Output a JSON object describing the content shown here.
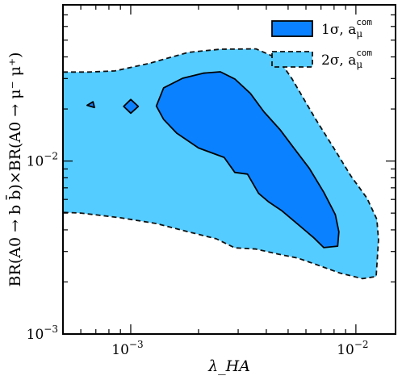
{
  "chart_data": {
    "type": "area",
    "xlabel": "λ_HA",
    "ylabel": "BR(A0 → b b̄)×BR(A0 → μ⁻ μ⁺)",
    "x_scale": "log",
    "y_scale": "log",
    "xlim": [
      0.0005,
      0.015
    ],
    "ylim": [
      0.001,
      0.08
    ],
    "x_ticks": [
      {
        "value": 0.001,
        "label": "10",
        "exp": "−3"
      },
      {
        "value": 0.01,
        "label": "10",
        "exp": "−2"
      }
    ],
    "y_ticks": [
      {
        "value": 0.001,
        "label": "10",
        "exp": "−3"
      },
      {
        "value": 0.01,
        "label": "10",
        "exp": "−2"
      }
    ],
    "grid": false,
    "legend_position": "top-right",
    "series": [
      {
        "name": "2σ, a_μ^com",
        "label_main": "2σ, a",
        "label_sub": "μ",
        "label_sup": "com",
        "fill": "#55ccff",
        "stroke": "#111111",
        "dashed": true,
        "polygons": [
          [
            [
              0.0005,
              0.0327
            ],
            [
              0.00065,
              0.0327
            ],
            [
              0.00085,
              0.0332
            ],
            [
              0.0012,
              0.0366
            ],
            [
              0.0018,
              0.0425
            ],
            [
              0.0025,
              0.0443
            ],
            [
              0.0036,
              0.0445
            ],
            [
              0.0045,
              0.0392
            ],
            [
              0.0052,
              0.0299
            ],
            [
              0.0066,
              0.0176
            ],
            [
              0.0081,
              0.0115
            ],
            [
              0.0095,
              0.0082
            ],
            [
              0.0112,
              0.0061
            ],
            [
              0.0124,
              0.0046
            ],
            [
              0.0126,
              0.0035
            ],
            [
              0.0123,
              0.00215
            ],
            [
              0.0107,
              0.00209
            ],
            [
              0.0085,
              0.00225
            ],
            [
              0.0065,
              0.00255
            ],
            [
              0.0055,
              0.00275
            ],
            [
              0.0045,
              0.0029
            ],
            [
              0.0036,
              0.0031
            ],
            [
              0.0029,
              0.00315
            ],
            [
              0.0024,
              0.00355
            ],
            [
              0.0018,
              0.0039
            ],
            [
              0.0013,
              0.00435
            ],
            [
              0.0009,
              0.0047
            ],
            [
              0.0006,
              0.005
            ],
            [
              0.0005,
              0.00505
            ]
          ]
        ]
      },
      {
        "name": "1σ, a_μ^com",
        "label_main": "1σ, a",
        "label_sub": "μ",
        "label_sup": "com",
        "fill": "#0a82ff",
        "stroke": "#000000",
        "dashed": false,
        "polygons": [
          [
            [
              0.0013,
              0.0208
            ],
            [
              0.0014,
              0.0265
            ],
            [
              0.0017,
              0.0301
            ],
            [
              0.0021,
              0.0322
            ],
            [
              0.0025,
              0.0328
            ],
            [
              0.0029,
              0.0298
            ],
            [
              0.0034,
              0.0246
            ],
            [
              0.0039,
              0.0193
            ],
            [
              0.0046,
              0.0152
            ],
            [
              0.0053,
              0.0119
            ],
            [
              0.0062,
              0.0091
            ],
            [
              0.0072,
              0.0066
            ],
            [
              0.0081,
              0.0049
            ],
            [
              0.0084,
              0.0039
            ],
            [
              0.0083,
              0.00322
            ],
            [
              0.0072,
              0.00316
            ],
            [
              0.0065,
              0.0036
            ],
            [
              0.0056,
              0.00425
            ],
            [
              0.0047,
              0.00515
            ],
            [
              0.0041,
              0.0058
            ],
            [
              0.0037,
              0.0065
            ],
            [
              0.0033,
              0.0084
            ],
            [
              0.0029,
              0.0086
            ],
            [
              0.0026,
              0.0105
            ],
            [
              0.002,
              0.0119
            ],
            [
              0.0016,
              0.0145
            ],
            [
              0.0014,
              0.0174
            ]
          ],
          [
            [
              0.00093,
              0.0207
            ],
            [
              0.001,
              0.0227
            ],
            [
              0.00108,
              0.0207
            ],
            [
              0.001,
              0.0189
            ]
          ],
          [
            [
              0.00064,
              0.021
            ],
            [
              0.00068,
              0.022
            ],
            [
              0.00069,
              0.0204
            ]
          ]
        ]
      }
    ]
  }
}
